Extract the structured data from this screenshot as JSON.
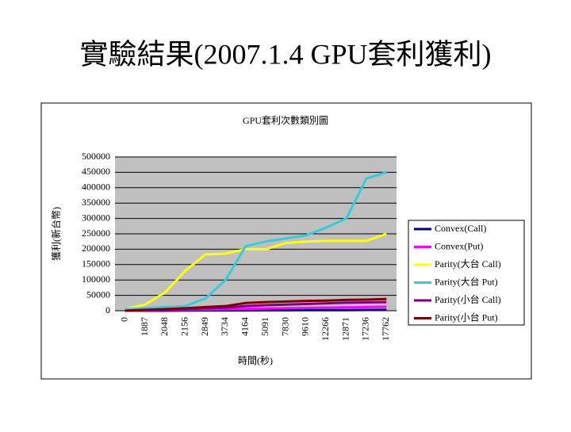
{
  "slide_title": "實驗結果(2007.1.4 GPU套利獲利)",
  "chart_data": {
    "type": "line",
    "title": "GPU套利次數類別圖",
    "x_label": "時間(秒)",
    "y_label": "獲利(新台幣)",
    "categories": [
      "0",
      "1887",
      "2048",
      "2156",
      "2849",
      "3734",
      "4164",
      "5091",
      "7830",
      "9610",
      "12266",
      "12871",
      "17236",
      "17762"
    ],
    "ylim": [
      0,
      500000
    ],
    "yticks": [
      0,
      50000,
      100000,
      150000,
      200000,
      250000,
      300000,
      350000,
      400000,
      450000,
      500000
    ],
    "grid": true,
    "legend": "right",
    "series": [
      {
        "name": "Convex(Call)",
        "color": "#000080",
        "values": [
          0,
          0,
          0,
          500,
          1000,
          1000,
          1000,
          1500,
          1500,
          2000,
          2000,
          2000,
          2500,
          3000
        ]
      },
      {
        "name": "Convex(Put)",
        "color": "#ff00ff",
        "values": [
          0,
          1000,
          2000,
          3000,
          4000,
          5000,
          6000,
          7000,
          8000,
          9000,
          10000,
          11000,
          12000,
          13000
        ]
      },
      {
        "name": "Parity(大台 Call)",
        "color": "#ffff00",
        "values": [
          5000,
          20000,
          60000,
          130000,
          183000,
          186000,
          200000,
          200000,
          220000,
          225000,
          227000,
          227000,
          227000,
          250000
        ]
      },
      {
        "name": "Parity(大台 Put)",
        "color": "#33ccdd",
        "values": [
          5000,
          8000,
          12000,
          15000,
          40000,
          100000,
          210000,
          225000,
          235000,
          245000,
          270000,
          300000,
          430000,
          450000
        ]
      },
      {
        "name": "Parity(小台 Call)",
        "color": "#800080",
        "values": [
          0,
          2000,
          3000,
          5000,
          8000,
          10000,
          15000,
          18000,
          20000,
          22000,
          24000,
          26000,
          27000,
          28000
        ]
      },
      {
        "name": "Parity(小台 Put)",
        "color": "#800000",
        "values": [
          0,
          3000,
          5000,
          8000,
          12000,
          15000,
          25000,
          28000,
          30000,
          32000,
          33000,
          35000,
          36000,
          38000
        ]
      }
    ]
  }
}
